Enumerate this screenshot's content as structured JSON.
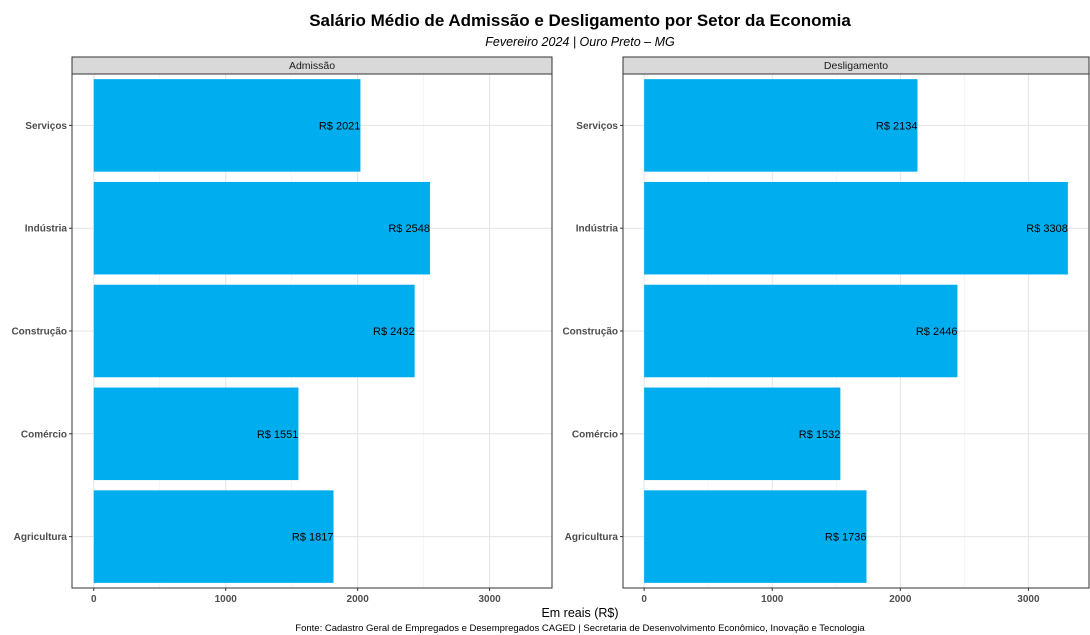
{
  "chart_data": {
    "type": "bar",
    "orientation": "horizontal",
    "title": "Salário Médio de Admissão e Desligamento por Setor da Economia",
    "subtitle": "Fevereiro 2024 | Ouro Preto – MG",
    "xlabel": "Em reais (R$)",
    "caption": "Fonte: Cadastro Geral de Empregados e Desempregados CAGED | Secretaria de Desenvolvimento Econômico, Inovação e Tecnologia",
    "categories": [
      "Serviços",
      "Indústria",
      "Construção",
      "Comércio",
      "Agricultura"
    ],
    "label_prefix": "R$ ",
    "bar_color": "#00AEEF",
    "grid": true,
    "panels": [
      {
        "name": "Admissão",
        "values": [
          2021,
          2548,
          2432,
          1551,
          1817
        ],
        "xticks": [
          0,
          1000,
          2000,
          3000
        ]
      },
      {
        "name": "Desligamento",
        "values": [
          2134,
          3308,
          2446,
          1532,
          1736
        ],
        "xticks": [
          0,
          1000,
          2000,
          3000
        ]
      }
    ],
    "xlim": [
      -165,
      3473
    ]
  }
}
